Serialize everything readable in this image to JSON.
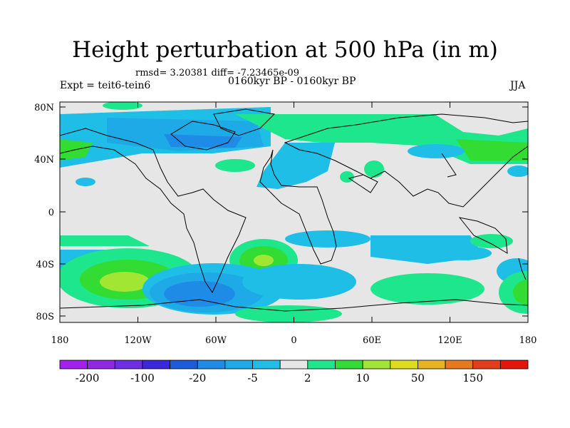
{
  "title": "Height perturbation at 500 hPa (in m)",
  "stats": "rmsd= 3.20381 diff= -7.23465e-09",
  "expt": "Expt = teit6-tein6",
  "period": "0160kyr BP - 0160kyr BP",
  "season": "JJA",
  "lat_labels": [
    "80N",
    "40N",
    "0",
    "40S",
    "80S"
  ],
  "lon_labels": [
    "180",
    "120W",
    "60W",
    "0",
    "60E",
    "120E",
    "180"
  ],
  "colorbar": {
    "colors": [
      "#a020f0",
      "#8c28e6",
      "#6e2ee6",
      "#3c28dc",
      "#1e5adc",
      "#1e8ce6",
      "#1eaae6",
      "#1ebee6",
      "#e6e6e6",
      "#1ee68c",
      "#32dc32",
      "#a0e632",
      "#dcdc1e",
      "#e6b41e",
      "#e6781e",
      "#e63c1e",
      "#e6140a"
    ],
    "labels": [
      "-200",
      "-100",
      "-20",
      "-5",
      "2",
      "10",
      "50",
      "150"
    ]
  }
}
